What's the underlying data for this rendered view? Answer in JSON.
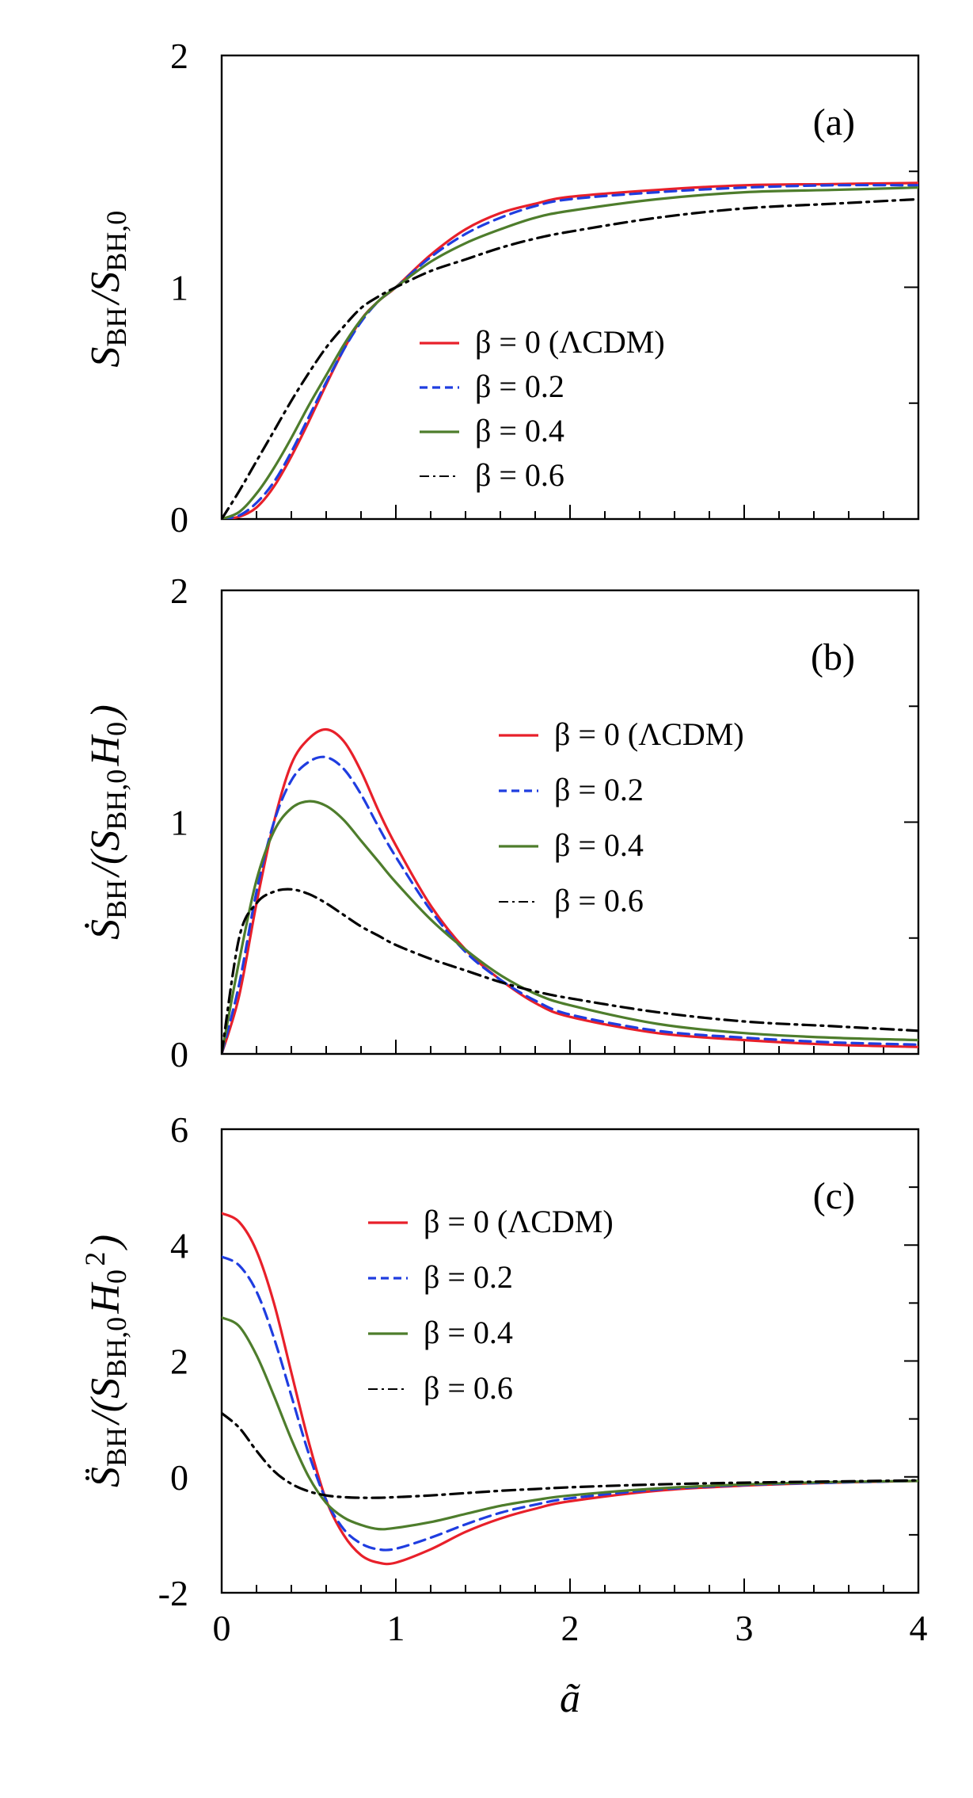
{
  "chart_data": [
    {
      "type": "line",
      "panel_label": "(a)",
      "x_tick_labels": [],
      "xlim": [
        0,
        4
      ],
      "ylim": [
        0,
        2
      ],
      "y_tick_labels": [
        "0",
        "1",
        "2"
      ],
      "ylabel": "S_BH/S_BH,0",
      "legend_position": "center",
      "x": [
        0,
        0.1,
        0.2,
        0.3,
        0.4,
        0.5,
        0.6,
        0.7,
        0.8,
        0.9,
        1.0,
        1.2,
        1.4,
        1.6,
        1.8,
        2.0,
        2.5,
        3.0,
        3.5,
        4.0
      ],
      "series": [
        {
          "name": "β = 0 (ΛCDM)",
          "color": "#e8202a",
          "dash": "solid",
          "values": [
            0,
            0.01,
            0.05,
            0.14,
            0.27,
            0.42,
            0.58,
            0.73,
            0.86,
            0.94,
            1.0,
            1.14,
            1.25,
            1.32,
            1.36,
            1.39,
            1.42,
            1.44,
            1.445,
            1.45
          ]
        },
        {
          "name": "β = 0.2",
          "color": "#1f3de0",
          "dash": "dashed",
          "values": [
            0,
            0.015,
            0.07,
            0.16,
            0.29,
            0.44,
            0.59,
            0.73,
            0.85,
            0.94,
            1.0,
            1.13,
            1.23,
            1.3,
            1.35,
            1.38,
            1.41,
            1.43,
            1.44,
            1.44
          ]
        },
        {
          "name": "β = 0.4",
          "color": "#4e7d2c",
          "dash": "solid",
          "values": [
            0,
            0.03,
            0.11,
            0.22,
            0.35,
            0.49,
            0.62,
            0.75,
            0.86,
            0.94,
            1.0,
            1.11,
            1.19,
            1.25,
            1.3,
            1.33,
            1.38,
            1.41,
            1.42,
            1.43
          ]
        },
        {
          "name": "β = 0.6",
          "color": "#000000",
          "dash": "dashdot",
          "values": [
            0,
            0.12,
            0.25,
            0.38,
            0.51,
            0.63,
            0.74,
            0.83,
            0.91,
            0.96,
            1.0,
            1.07,
            1.12,
            1.17,
            1.21,
            1.24,
            1.3,
            1.34,
            1.36,
            1.38
          ]
        }
      ]
    },
    {
      "type": "line",
      "panel_label": "(b)",
      "x_tick_labels": [],
      "xlim": [
        0,
        4
      ],
      "ylim": [
        0,
        2
      ],
      "y_tick_labels": [
        "0",
        "1",
        "2"
      ],
      "ylabel": "Ṡ_BH/(S_BH,0 H_0)",
      "legend_position": "upper-right",
      "x": [
        0,
        0.1,
        0.2,
        0.3,
        0.4,
        0.5,
        0.6,
        0.7,
        0.8,
        0.9,
        1.0,
        1.2,
        1.4,
        1.6,
        1.8,
        2.0,
        2.5,
        3.0,
        3.5,
        4.0
      ],
      "series": [
        {
          "name": "β = 0 (ΛCDM)",
          "color": "#e8202a",
          "dash": "solid",
          "values": [
            0,
            0.25,
            0.65,
            1.0,
            1.25,
            1.36,
            1.4,
            1.35,
            1.22,
            1.05,
            0.9,
            0.64,
            0.45,
            0.32,
            0.22,
            0.16,
            0.09,
            0.06,
            0.04,
            0.03
          ]
        },
        {
          "name": "β = 0.2",
          "color": "#1f3de0",
          "dash": "dashed",
          "values": [
            0,
            0.3,
            0.7,
            1.0,
            1.18,
            1.26,
            1.28,
            1.23,
            1.12,
            0.98,
            0.85,
            0.62,
            0.44,
            0.32,
            0.23,
            0.17,
            0.1,
            0.07,
            0.05,
            0.04
          ]
        },
        {
          "name": "β = 0.4",
          "color": "#4e7d2c",
          "dash": "solid",
          "values": [
            0,
            0.4,
            0.75,
            0.96,
            1.06,
            1.09,
            1.07,
            1.01,
            0.92,
            0.83,
            0.74,
            0.58,
            0.45,
            0.34,
            0.26,
            0.21,
            0.13,
            0.09,
            0.07,
            0.06
          ]
        },
        {
          "name": "β = 0.6",
          "color": "#000000",
          "dash": "dashdot",
          "values": [
            0,
            0.5,
            0.65,
            0.7,
            0.71,
            0.69,
            0.65,
            0.6,
            0.55,
            0.51,
            0.47,
            0.41,
            0.36,
            0.31,
            0.27,
            0.24,
            0.18,
            0.14,
            0.12,
            0.1
          ]
        }
      ]
    },
    {
      "type": "line",
      "panel_label": "(c)",
      "x_tick_labels": [
        "0",
        "1",
        "2",
        "3",
        "4"
      ],
      "xlim": [
        0,
        4
      ],
      "ylim": [
        -2,
        6
      ],
      "y_tick_labels": [
        "-2",
        "0",
        "2",
        "4",
        "6"
      ],
      "ylabel": "S̈_BH/(S_BH,0 H_0^2)",
      "xlabel": "ã",
      "legend_position": "upper-right",
      "x": [
        0,
        0.1,
        0.2,
        0.3,
        0.4,
        0.5,
        0.6,
        0.7,
        0.8,
        0.9,
        1.0,
        1.2,
        1.4,
        1.6,
        1.8,
        2.0,
        2.5,
        3.0,
        3.5,
        4.0
      ],
      "series": [
        {
          "name": "β = 0 (ΛCDM)",
          "color": "#e8202a",
          "dash": "solid",
          "values": [
            4.55,
            4.4,
            3.9,
            3.0,
            1.8,
            0.6,
            -0.4,
            -1.0,
            -1.35,
            -1.48,
            -1.48,
            -1.25,
            -0.95,
            -0.72,
            -0.55,
            -0.42,
            -0.24,
            -0.15,
            -0.1,
            -0.07
          ]
        },
        {
          "name": "β = 0.2",
          "color": "#1f3de0",
          "dash": "dashed",
          "values": [
            3.8,
            3.65,
            3.2,
            2.4,
            1.4,
            0.4,
            -0.4,
            -0.9,
            -1.15,
            -1.25,
            -1.24,
            -1.05,
            -0.82,
            -0.62,
            -0.48,
            -0.37,
            -0.22,
            -0.14,
            -0.1,
            -0.07
          ]
        },
        {
          "name": "β = 0.4",
          "color": "#4e7d2c",
          "dash": "solid",
          "values": [
            2.75,
            2.6,
            2.1,
            1.4,
            0.65,
            0.0,
            -0.45,
            -0.7,
            -0.83,
            -0.9,
            -0.88,
            -0.78,
            -0.64,
            -0.5,
            -0.4,
            -0.32,
            -0.2,
            -0.13,
            -0.09,
            -0.07
          ]
        },
        {
          "name": "β = 0.6",
          "color": "#000000",
          "dash": "dashdot",
          "values": [
            1.1,
            0.85,
            0.45,
            0.1,
            -0.12,
            -0.25,
            -0.32,
            -0.35,
            -0.36,
            -0.36,
            -0.35,
            -0.32,
            -0.28,
            -0.24,
            -0.21,
            -0.18,
            -0.13,
            -0.1,
            -0.08,
            -0.06
          ]
        }
      ]
    }
  ]
}
